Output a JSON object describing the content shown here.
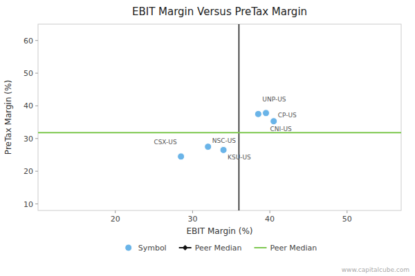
{
  "chart_data": {
    "type": "scatter",
    "title": "EBIT Margin Versus PreTax Margin",
    "x_label": "EBIT Margin (%)",
    "y_label": "PreTax Margin (%)",
    "xlim": [
      10,
      57
    ],
    "ylim": [
      8,
      65
    ],
    "xticks": [
      20,
      30,
      40,
      50
    ],
    "yticks": [
      10,
      20,
      30,
      40,
      50,
      60
    ],
    "grid": false,
    "legend": "bottom",
    "series": [
      {
        "name": "Symbol",
        "color": "#6ab4e8",
        "marker": "circle",
        "x": [
          38.5,
          39.5,
          40.5,
          32.0,
          34.0,
          28.5
        ],
        "values": [
          37.5,
          37.8,
          35.3,
          27.5,
          26.5,
          24.5
        ],
        "labels": [
          "UNP-US",
          "CNI-US",
          "CP-US",
          "NSC-US",
          "KSU-US",
          "CSX-US"
        ]
      }
    ],
    "reference_lines": [
      {
        "name": "Peer Median",
        "axis": "x",
        "value": 36.0,
        "color": "#111111",
        "marker": "diamond"
      },
      {
        "name": "Peer Median",
        "axis": "y",
        "value": 31.8,
        "color": "#7ec850"
      }
    ],
    "annotations": [
      "www.capitalcube.com"
    ]
  }
}
